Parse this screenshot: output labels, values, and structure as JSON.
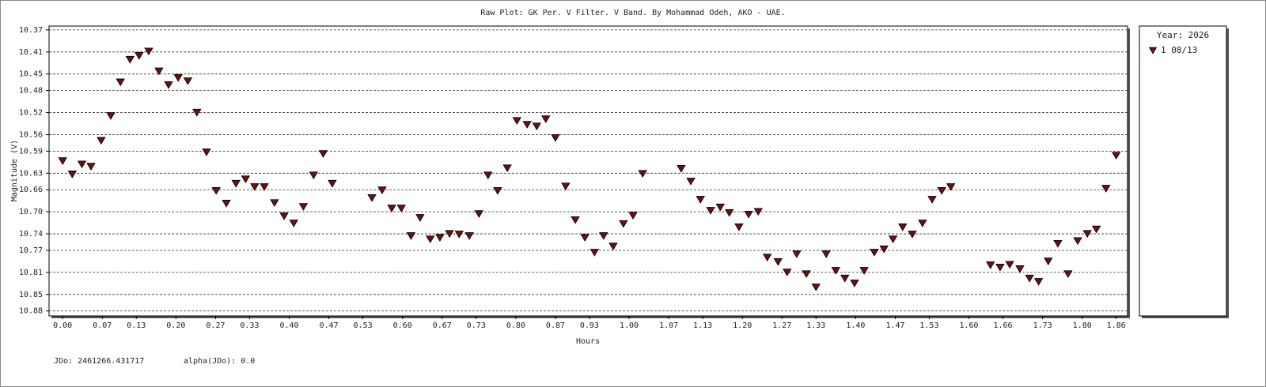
{
  "chart_data": {
    "type": "scatter",
    "title": "Raw Plot: GK Per. V Filter. V Band. By Mohammad Odeh, AKO - UAE.",
    "x_label": "Hours",
    "y_label": "Magnitude (V)",
    "y_inverted": true,
    "grid": true,
    "legend_title": "Year: 2026",
    "legend_position": "outside-right",
    "annotations": [
      "JDo: 2461266.431717",
      "alpha(JDo): 0.0"
    ],
    "xlim": [
      -0.024,
      1.88
    ],
    "ylim": [
      10.363,
      10.889
    ],
    "xticks": [
      {
        "value": 0,
        "label": "0.00"
      },
      0.07,
      0.13,
      {
        "value": 0.2,
        "label": "0.20"
      },
      0.27,
      0.33,
      {
        "value": 0.4,
        "label": "0.40"
      },
      0.47,
      0.53,
      {
        "value": 0.6,
        "label": "0.60"
      },
      0.67,
      0.73,
      {
        "value": 0.8,
        "label": "0.80"
      },
      0.87,
      0.93,
      {
        "value": 1,
        "label": "1.00"
      },
      1.07,
      1.13,
      {
        "value": 1.2,
        "label": "1.20"
      },
      1.27,
      1.33,
      {
        "value": 1.4,
        "label": "1.40"
      },
      1.47,
      1.53,
      {
        "value": 1.6,
        "label": "1.60"
      },
      1.66,
      1.73,
      {
        "value": 1.8,
        "label": "1.80"
      },
      1.86
    ],
    "yticks": [
      10.37,
      10.41,
      10.45,
      10.48,
      10.52,
      10.56,
      10.59,
      10.63,
      10.66,
      {
        "value": 10.7,
        "label": "10.70"
      },
      10.74,
      10.77,
      10.81,
      10.85,
      10.88
    ],
    "series": [
      {
        "name": "1 08/13",
        "color": "#6b1010",
        "x": [
          0,
          0.017,
          0.034,
          0.05,
          0.068,
          0.085,
          0.102,
          0.119,
          0.135,
          0.152,
          0.17,
          0.187,
          0.204,
          0.221,
          0.237,
          0.254,
          0.271,
          0.289,
          0.306,
          0.323,
          0.339,
          0.356,
          0.374,
          0.391,
          0.408,
          0.425,
          0.443,
          0.46,
          0.476,
          0.546,
          0.564,
          0.581,
          0.598,
          0.615,
          0.631,
          0.649,
          0.666,
          0.683,
          0.7,
          0.718,
          0.735,
          0.751,
          0.768,
          0.785,
          0.802,
          0.82,
          0.837,
          0.853,
          0.87,
          0.888,
          0.905,
          0.922,
          0.939,
          0.955,
          0.972,
          0.99,
          1.007,
          1.024,
          1.092,
          1.109,
          1.126,
          1.144,
          1.161,
          1.177,
          1.194,
          1.211,
          1.228,
          1.244,
          1.263,
          1.279,
          1.296,
          1.313,
          1.33,
          1.348,
          1.365,
          1.381,
          1.398,
          1.415,
          1.433,
          1.45,
          1.466,
          1.483,
          1.5,
          1.518,
          1.535,
          1.552,
          1.568,
          1.638,
          1.655,
          1.672,
          1.69,
          1.707,
          1.723,
          1.74,
          1.757,
          1.775,
          1.792,
          1.809,
          1.825,
          1.842,
          1.86
        ],
        "values": [
          10.608,
          10.632,
          10.614,
          10.618,
          10.571,
          10.526,
          10.465,
          10.424,
          10.417,
          10.409,
          10.445,
          10.47,
          10.457,
          10.463,
          10.52,
          10.592,
          10.662,
          10.685,
          10.649,
          10.641,
          10.655,
          10.655,
          10.684,
          10.708,
          10.721,
          10.691,
          10.634,
          10.595,
          10.649,
          10.675,
          10.661,
          10.694,
          10.694,
          10.744,
          10.711,
          10.75,
          10.747,
          10.74,
          10.741,
          10.744,
          10.704,
          10.634,
          10.662,
          10.621,
          10.535,
          10.542,
          10.545,
          10.532,
          10.566,
          10.654,
          10.715,
          10.747,
          10.774,
          10.744,
          10.763,
          10.722,
          10.707,
          10.631,
          10.622,
          10.645,
          10.678,
          10.698,
          10.692,
          10.702,
          10.728,
          10.705,
          10.7,
          10.783,
          10.791,
          10.81,
          10.777,
          10.813,
          10.837,
          10.777,
          10.807,
          10.821,
          10.83,
          10.807,
          10.774,
          10.768,
          10.75,
          10.728,
          10.741,
          10.721,
          10.678,
          10.662,
          10.655,
          10.797,
          10.801,
          10.796,
          10.804,
          10.821,
          10.827,
          10.79,
          10.758,
          10.813,
          10.753,
          10.74,
          10.732,
          10.658,
          10.598
        ]
      }
    ]
  }
}
